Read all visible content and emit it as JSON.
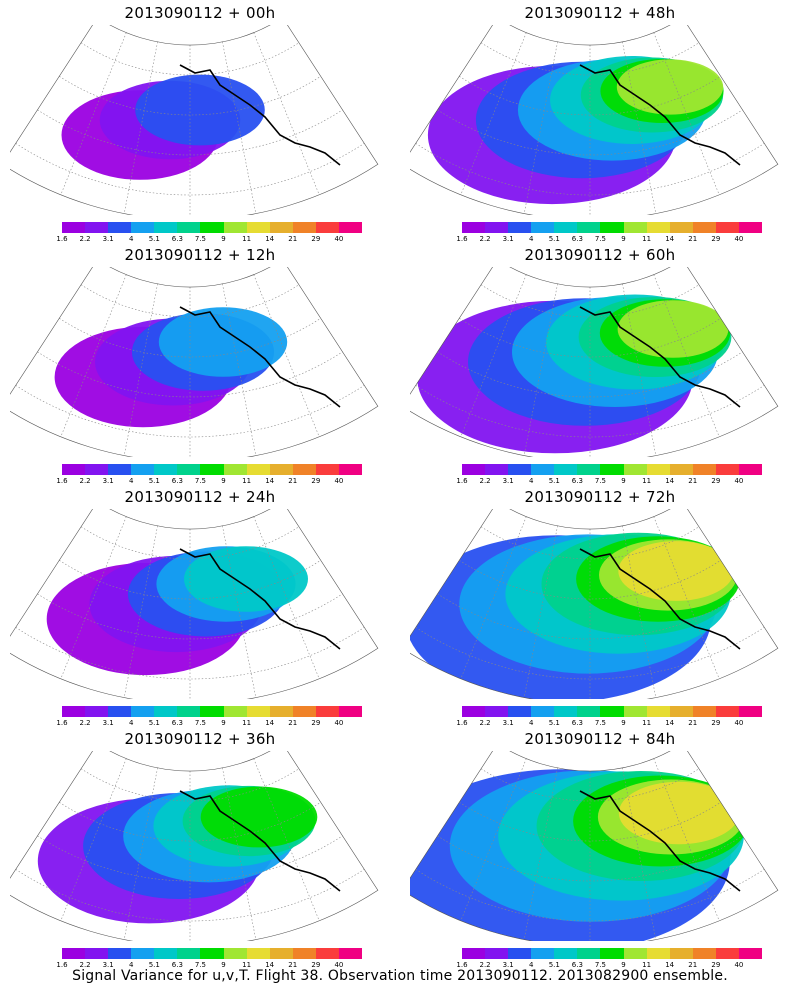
{
  "caption": "Signal Variance for u,v,T. Flight 38. Observation time 2013090112. 2013082900 ensemble.",
  "colorbar": {
    "colors": [
      "#9b00e1",
      "#8214f0",
      "#2850f0",
      "#14a0f0",
      "#00c8c8",
      "#00d28c",
      "#00dc00",
      "#a0e632",
      "#e6dc32",
      "#e6af2d",
      "#f08228",
      "#fa3c3c",
      "#f00082"
    ],
    "labels": [
      "1.6",
      "2.2",
      "3.1",
      "4",
      "5.1",
      "6.3",
      "7.5",
      "9",
      "11",
      "14",
      "21",
      "29",
      "40"
    ]
  },
  "panels": [
    {
      "id": "p00",
      "title": "2013090112 + 00h",
      "level": 0
    },
    {
      "id": "p48",
      "title": "2013090112 + 48h",
      "level": 4
    },
    {
      "id": "p12",
      "title": "2013090112 + 12h",
      "level": 1
    },
    {
      "id": "p60",
      "title": "2013090112 + 60h",
      "level": 5
    },
    {
      "id": "p24",
      "title": "2013090112 + 24h",
      "level": 2
    },
    {
      "id": "p72",
      "title": "2013090112 + 72h",
      "level": 6
    },
    {
      "id": "p36",
      "title": "2013090112 + 36h",
      "level": 3
    },
    {
      "id": "p84",
      "title": "2013090112 + 84h",
      "level": 7
    }
  ]
}
